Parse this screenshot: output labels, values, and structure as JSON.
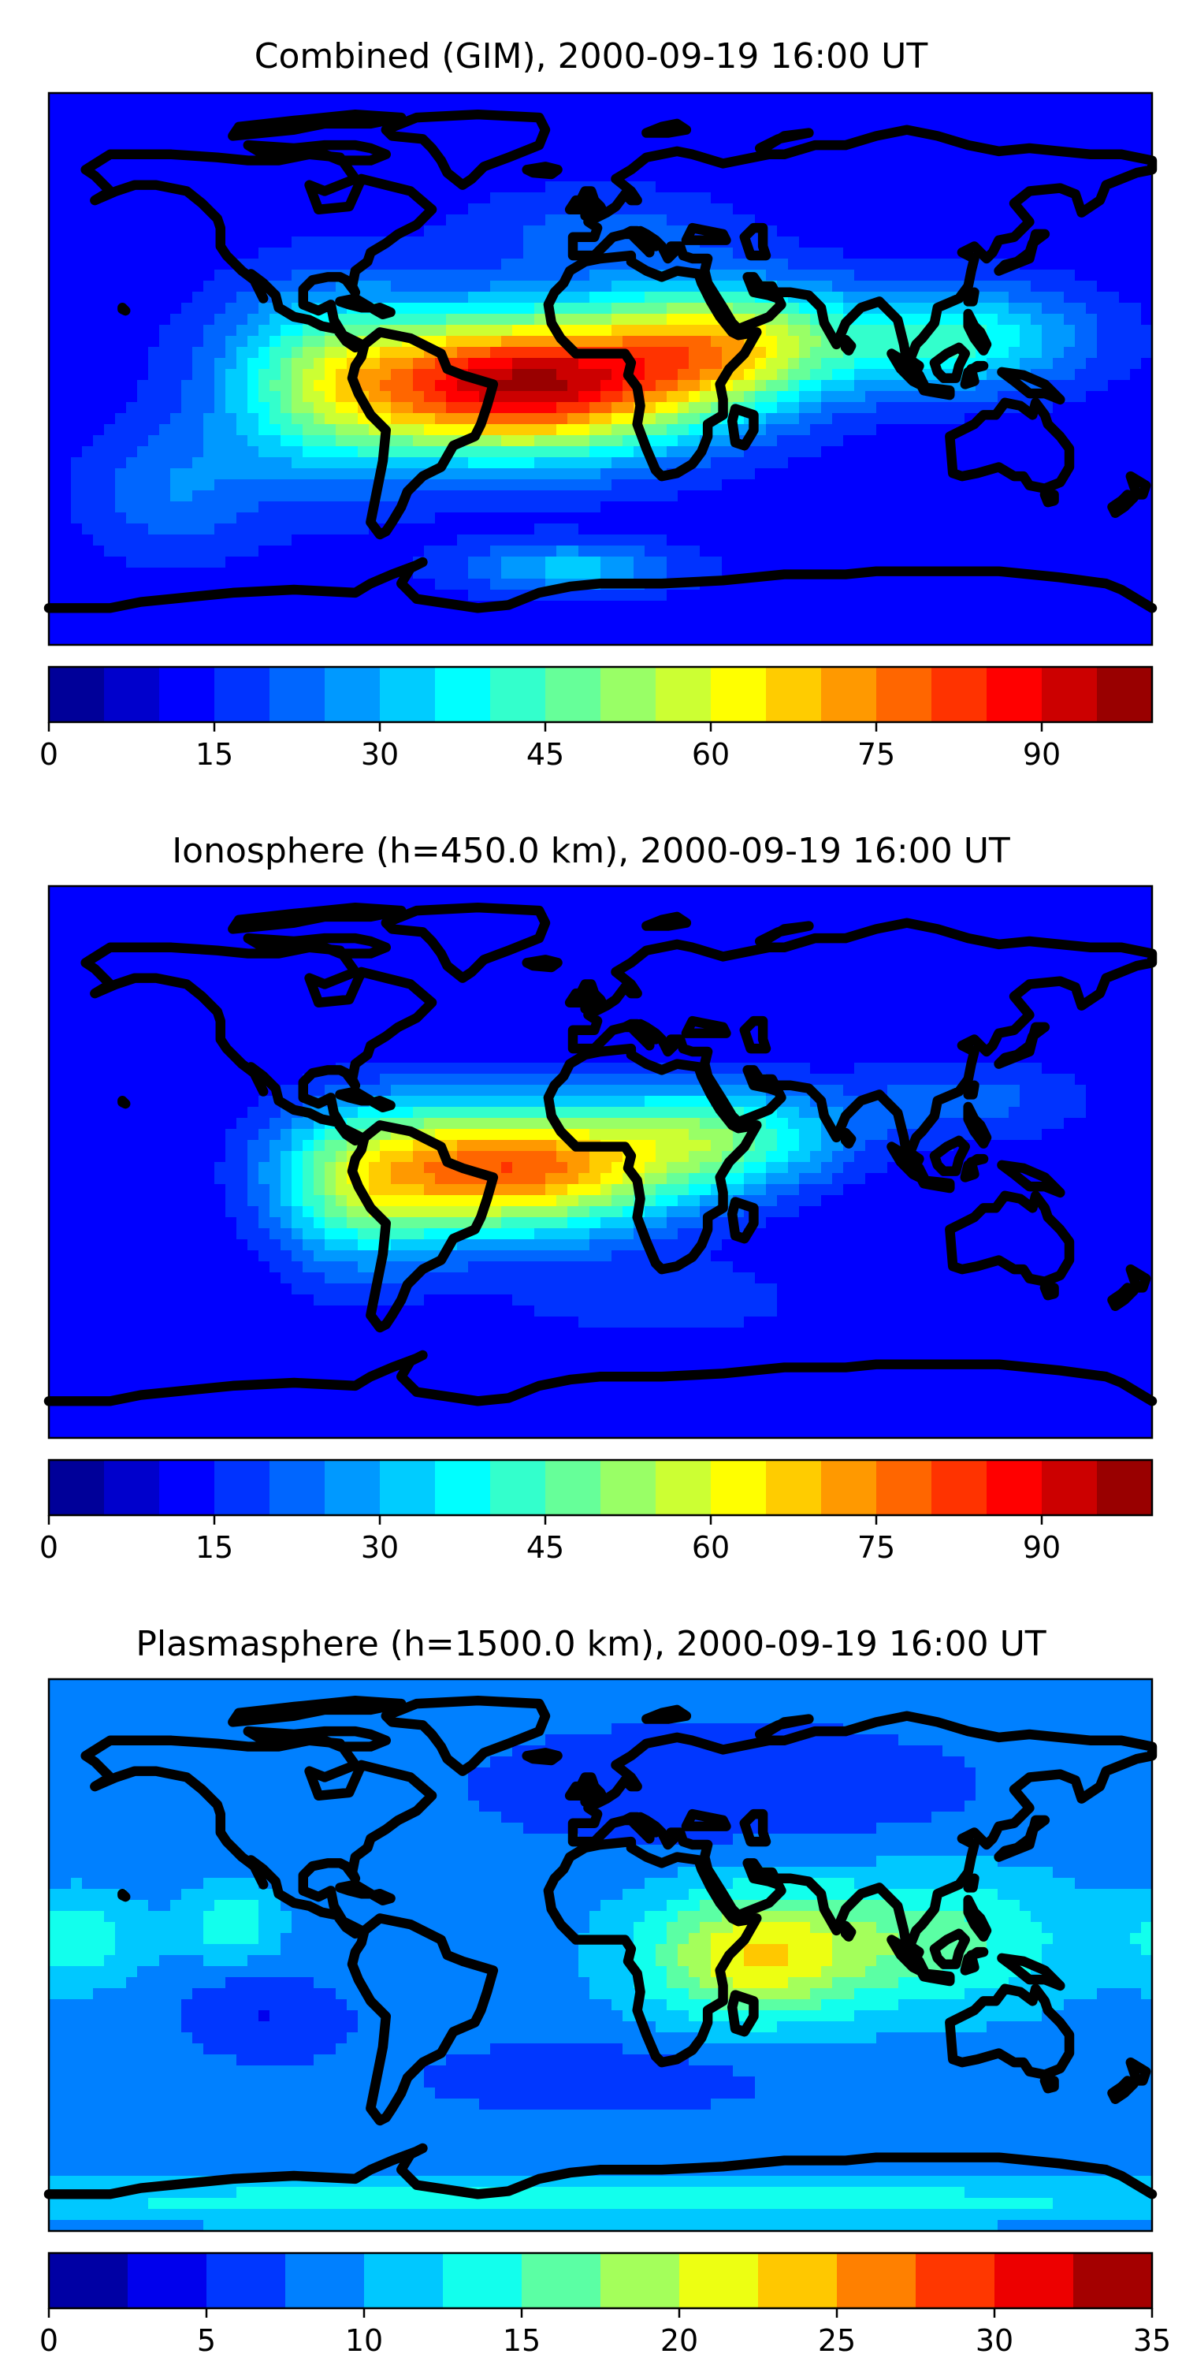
{
  "chart_data": [
    {
      "type": "heatmap",
      "title": "Combined (GIM), 2000-09-19 16:00 UT",
      "colorbar": {
        "min": 0,
        "max": 100,
        "step": 5,
        "ticks": [
          0,
          15,
          30,
          45,
          60,
          75,
          90
        ],
        "tick_labels": [
          "0",
          "15",
          "30",
          "45",
          "60",
          "75",
          "90"
        ]
      },
      "field": {
        "background": 12,
        "features": [
          {
            "lon": -25,
            "lat": -5,
            "sx": 40,
            "sy": 16,
            "amp": 82
          },
          {
            "lon": 40,
            "lat": 8,
            "sx": 28,
            "sy": 14,
            "amp": 45
          },
          {
            "lon": 115,
            "lat": 10,
            "sx": 30,
            "sy": 12,
            "amp": 30
          },
          {
            "lon": -90,
            "lat": -5,
            "sx": 25,
            "sy": 22,
            "amp": 28
          },
          {
            "lon": -140,
            "lat": -40,
            "sx": 20,
            "sy": 15,
            "amp": 12
          },
          {
            "lon": -10,
            "lat": -65,
            "sx": 25,
            "sy": 6,
            "amp": 20
          },
          {
            "lon": 0,
            "lat": 45,
            "sx": 30,
            "sy": 10,
            "amp": 10
          }
        ]
      }
    },
    {
      "type": "heatmap",
      "title": "Ionosphere  (h=450.0 km), 2000-09-19 16:00 UT",
      "colorbar": {
        "min": 0,
        "max": 100,
        "step": 5,
        "ticks": [
          0,
          15,
          30,
          45,
          60,
          75,
          90
        ],
        "tick_labels": [
          "0",
          "15",
          "30",
          "45",
          "60",
          "75",
          "90"
        ]
      },
      "field": {
        "background": 10,
        "features": [
          {
            "lon": -30,
            "lat": -2,
            "sx": 38,
            "sy": 15,
            "amp": 68
          },
          {
            "lon": 40,
            "lat": 8,
            "sx": 28,
            "sy": 12,
            "amp": 32
          },
          {
            "lon": -80,
            "lat": -10,
            "sx": 20,
            "sy": 20,
            "amp": 25
          },
          {
            "lon": 120,
            "lat": 20,
            "sx": 30,
            "sy": 10,
            "amp": 12
          },
          {
            "lon": 20,
            "lat": -45,
            "sx": 40,
            "sy": 10,
            "amp": 8
          }
        ]
      }
    },
    {
      "type": "heatmap",
      "title": "Plasmasphere (h=1500.0 km), 2000-09-19 16:00 UT",
      "colorbar": {
        "min": 0,
        "max": 35,
        "step": 2.5,
        "ticks": [
          0,
          5,
          10,
          15,
          20,
          25,
          30,
          35
        ],
        "tick_labels": [
          "0",
          "5",
          "10",
          "15",
          "20",
          "25",
          "30",
          "35"
        ]
      },
      "field": {
        "background": 9,
        "features": [
          {
            "lon": 50,
            "lat": 0,
            "sx": 25,
            "sy": 15,
            "amp": 13
          },
          {
            "lon": 110,
            "lat": 5,
            "sx": 30,
            "sy": 15,
            "amp": 7
          },
          {
            "lon": -120,
            "lat": 10,
            "sx": 10,
            "sy": 8,
            "amp": 6
          },
          {
            "lon": -170,
            "lat": 5,
            "sx": 15,
            "sy": 10,
            "amp": 5
          },
          {
            "lon": 0,
            "lat": -40,
            "sx": 50,
            "sy": 10,
            "amp": -3
          },
          {
            "lon": -110,
            "lat": -20,
            "sx": 20,
            "sy": 10,
            "amp": -4
          },
          {
            "lon": 40,
            "lat": 55,
            "sx": 60,
            "sy": 15,
            "amp": -4
          },
          {
            "lon": 0,
            "lat": -80,
            "sx": 180,
            "sy": 5,
            "amp": 5
          }
        ]
      }
    }
  ]
}
